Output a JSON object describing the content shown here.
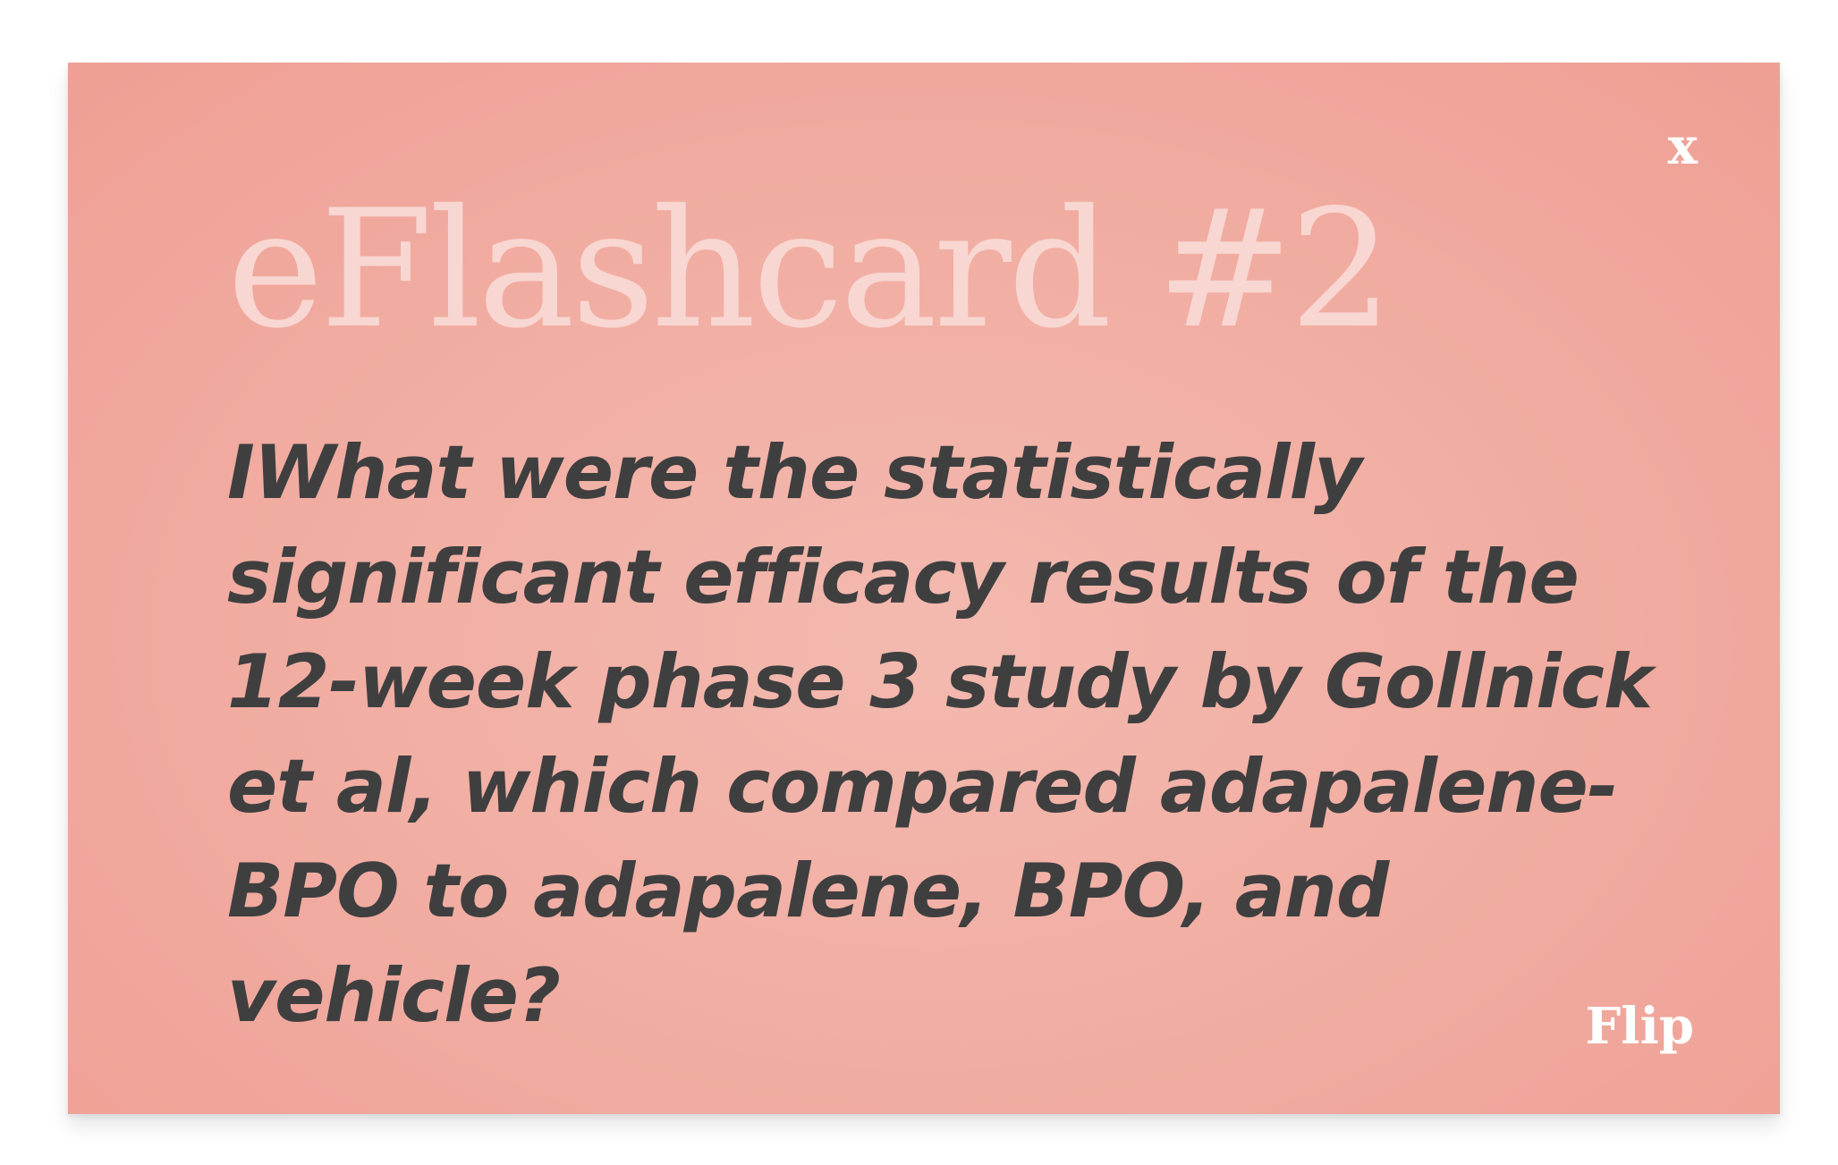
{
  "card": {
    "background_color": "#f1aca1",
    "title": "eFlashcard #2",
    "question": "IWhat were the statistically significant efficacy results of the 12-week phase 3 study by Gollnick et al, which compared adapalene-BPO to adapalene, BPO, and vehicle?",
    "close_label": "x",
    "flip_label": "Flip"
  },
  "colors": {
    "title": "#f8d6d1",
    "question_text": "#3f3f40",
    "controls": "#ffffff"
  }
}
